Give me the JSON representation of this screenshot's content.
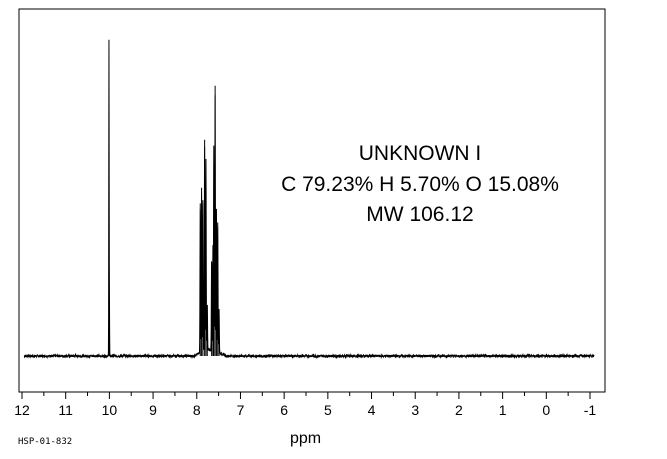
{
  "chart_data": {
    "type": "line",
    "title": "",
    "xlabel": "ppm",
    "ylabel": "",
    "x_reversed": true,
    "xlim": [
      12,
      -1
    ],
    "ylim": [
      0,
      1
    ],
    "grid": false,
    "x_ticks": [
      "12",
      "11",
      "10",
      "9",
      "8",
      "7",
      "6",
      "5",
      "4",
      "3",
      "2",
      "1",
      "0",
      "-1"
    ],
    "annotations": [
      "UNKNOWN  I",
      "C 79.23% H 5.70% O 15.08%",
      "MW 106.12"
    ],
    "series": [
      {
        "peaks": [
          {
            "x": 10.01,
            "y": 0.99
          },
          {
            "x": 10.0,
            "y": 0.19
          },
          {
            "x": 7.92,
            "y": 0.48
          },
          {
            "x": 7.89,
            "y": 0.52
          },
          {
            "x": 7.86,
            "y": 0.49
          },
          {
            "x": 7.82,
            "y": 0.68
          },
          {
            "x": 7.79,
            "y": 0.6
          },
          {
            "x": 7.76,
            "y": 0.15
          },
          {
            "x": 7.66,
            "y": 0.29
          },
          {
            "x": 7.63,
            "y": 0.33
          },
          {
            "x": 7.61,
            "y": 0.64
          },
          {
            "x": 7.58,
            "y": 0.85
          },
          {
            "x": 7.55,
            "y": 0.45
          },
          {
            "x": 7.52,
            "y": 0.42
          },
          {
            "x": 7.49,
            "y": 0.14
          }
        ]
      }
    ]
  },
  "footer": {
    "code": "HSP-01-832"
  }
}
